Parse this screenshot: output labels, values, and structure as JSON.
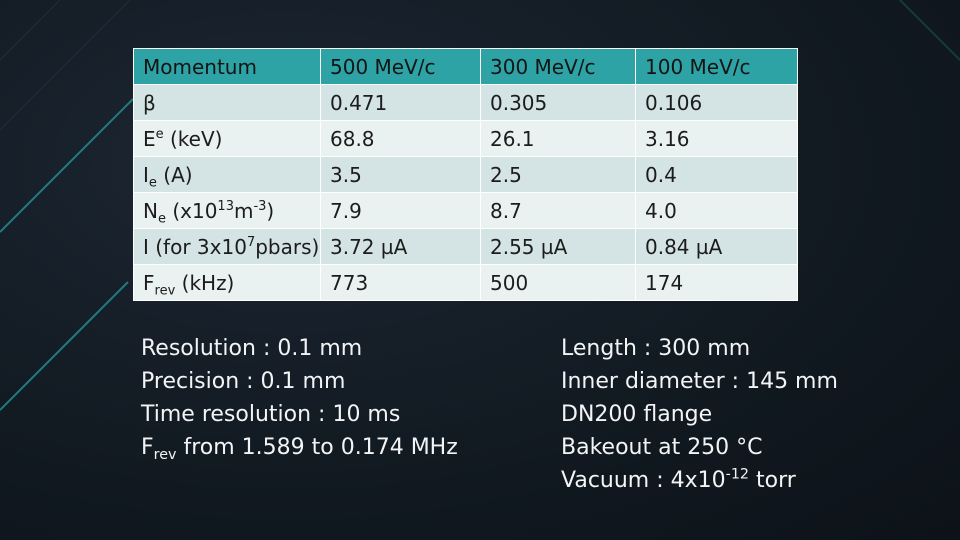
{
  "table": {
    "columns": [
      "Momentum",
      "500 MeV/c",
      "300 MeV/c",
      "100 MeV/c"
    ],
    "rows": [
      {
        "label": "β",
        "values": [
          "0.471",
          "0.305",
          "0.106"
        ]
      },
      {
        "label_main": "E",
        "label_sup": "e",
        "label_tail": " (keV)",
        "values": [
          "68.8",
          "26.1",
          "3.16"
        ]
      },
      {
        "label_main": "I",
        "label_sub": "e",
        "label_tail": " (A)",
        "values": [
          "3.5",
          "2.5",
          "0.4"
        ]
      },
      {
        "label_main": "N",
        "label_sub": "e",
        "label_mid": " (x10",
        "label_sup": "13",
        "label_mid2": "m",
        "label_sup2": "-3",
        "label_tail": ")",
        "values": [
          "7.9",
          "8.7",
          "4.0"
        ]
      },
      {
        "label_main": "I (for 3x10",
        "label_sup": "7",
        "label_tail": "pbars)",
        "values": [
          "3.72 µA",
          "2.55 µA",
          "0.84 µA"
        ]
      },
      {
        "label_main": "F",
        "label_sub": "rev",
        "label_tail": " (kHz)",
        "values": [
          "773",
          "500",
          "174"
        ]
      }
    ]
  },
  "notes_left": {
    "resolution": "Resolution : 0.1 mm",
    "precision": "Precision : 0.1 mm",
    "time_resolution": "Time resolution : 10 ms",
    "frev_main": "F",
    "frev_sub": "rev",
    "frev_tail": " from 1.589 to 0.174 MHz"
  },
  "notes_right": {
    "length": "Length : 300 mm",
    "inner_diameter": "Inner diameter : 145 mm",
    "flange": "DN200 flange",
    "bakeout": "Bakeout at 250 °C",
    "vacuum_main": "Vacuum : 4x10",
    "vacuum_sup": "-12",
    "vacuum_tail": " torr"
  },
  "colors": {
    "background": "#141c24",
    "header": "#2ea3a6",
    "row_odd": "#d4e3e3",
    "row_even": "#eaf1f1",
    "accent_lines": "#1f8f92"
  }
}
